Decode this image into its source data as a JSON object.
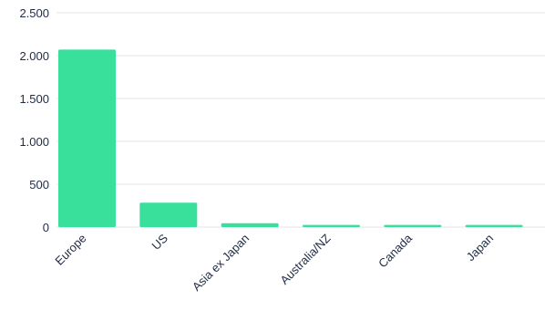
{
  "chart_data": {
    "type": "bar",
    "categories": [
      "Europe",
      "US",
      "Asia ex Japan",
      "Australia/NZ",
      "Canada",
      "Japan"
    ],
    "values": [
      2070,
      285,
      45,
      25,
      25,
      25
    ],
    "yticks": [
      0,
      500,
      1000,
      1500,
      2000,
      2500
    ],
    "ytick_labels": [
      "0",
      "500",
      "1.000",
      "1.500",
      "2.000",
      "2.500"
    ],
    "ylim": [
      0,
      2500
    ],
    "grid": true,
    "bar_color": "#38e09c",
    "grid_color": "#e4e6ea",
    "text_color": "#1f2a44"
  }
}
